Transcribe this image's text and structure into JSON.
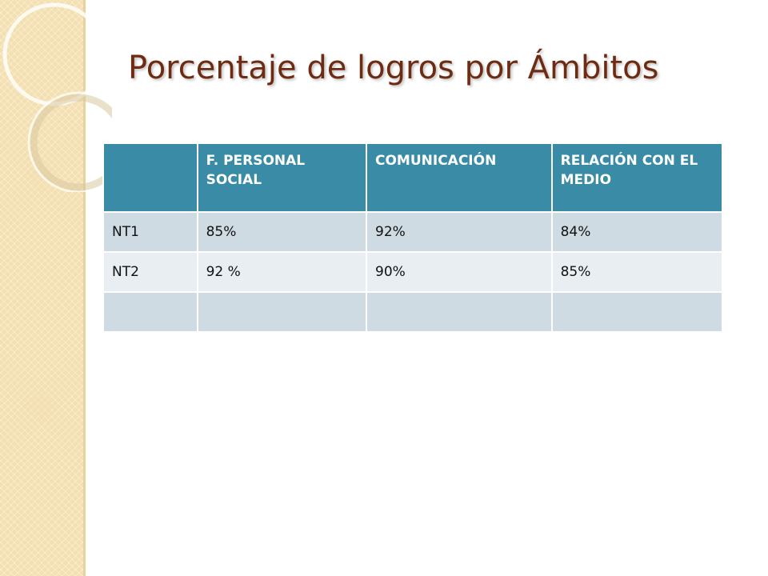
{
  "slide": {
    "title": "Porcentaje de logros por Ámbitos"
  },
  "table": {
    "headers": [
      "",
      "F. PERSONAL SOCIAL",
      "COMUNICACIÓN",
      "RELACIÓN CON EL MEDIO"
    ],
    "rows": [
      [
        "NT1",
        "85%",
        "92%",
        "84%"
      ],
      [
        "NT2",
        "92 %",
        "90%",
        "85%"
      ],
      [
        "",
        "",
        "",
        ""
      ]
    ]
  },
  "colors": {
    "title": "#6e2b12",
    "header_fill": "#3a8ca6",
    "row_fill_dark": "#cfdbe2",
    "row_fill_light": "#e8eef2",
    "side_strip": "#f3dfb0"
  }
}
